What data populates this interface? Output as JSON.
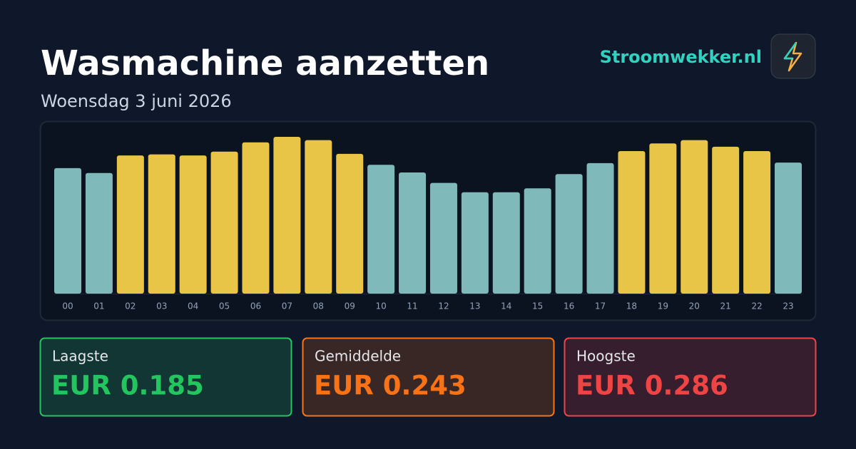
{
  "header": {
    "title": "Wasmachine aanzetten",
    "date": "Woensdag 3 juni 2026",
    "brand": "Stroomwekker.nl"
  },
  "chart_data": {
    "type": "bar",
    "categories": [
      "00",
      "01",
      "02",
      "03",
      "04",
      "05",
      "06",
      "07",
      "08",
      "09",
      "10",
      "11",
      "12",
      "13",
      "14",
      "15",
      "16",
      "17",
      "18",
      "19",
      "20",
      "21",
      "22",
      "23"
    ],
    "values": [
      0.229,
      0.22,
      0.252,
      0.254,
      0.252,
      0.259,
      0.276,
      0.286,
      0.28,
      0.255,
      0.235,
      0.221,
      0.202,
      0.185,
      0.185,
      0.192,
      0.218,
      0.238,
      0.26,
      0.274,
      0.28,
      0.268,
      0.26,
      0.239
    ],
    "colors": [
      "#7fb9b9",
      "#7fb9b9",
      "#e8c547",
      "#e8c547",
      "#e8c547",
      "#e8c547",
      "#e8c547",
      "#e8c547",
      "#e8c547",
      "#e8c547",
      "#7fb9b9",
      "#7fb9b9",
      "#7fb9b9",
      "#7fb9b9",
      "#7fb9b9",
      "#7fb9b9",
      "#7fb9b9",
      "#7fb9b9",
      "#e8c547",
      "#e8c547",
      "#e8c547",
      "#e8c547",
      "#e8c547",
      "#7fb9b9"
    ],
    "ylim": [
      0,
      0.286
    ]
  },
  "stats": [
    {
      "label": "Laagste",
      "value": "EUR 0.185",
      "color": "#22c55e"
    },
    {
      "label": "Gemiddelde",
      "value": "EUR 0.243",
      "color": "#f97316"
    },
    {
      "label": "Hoogste",
      "value": "EUR 0.286",
      "color": "#ef4444"
    }
  ]
}
